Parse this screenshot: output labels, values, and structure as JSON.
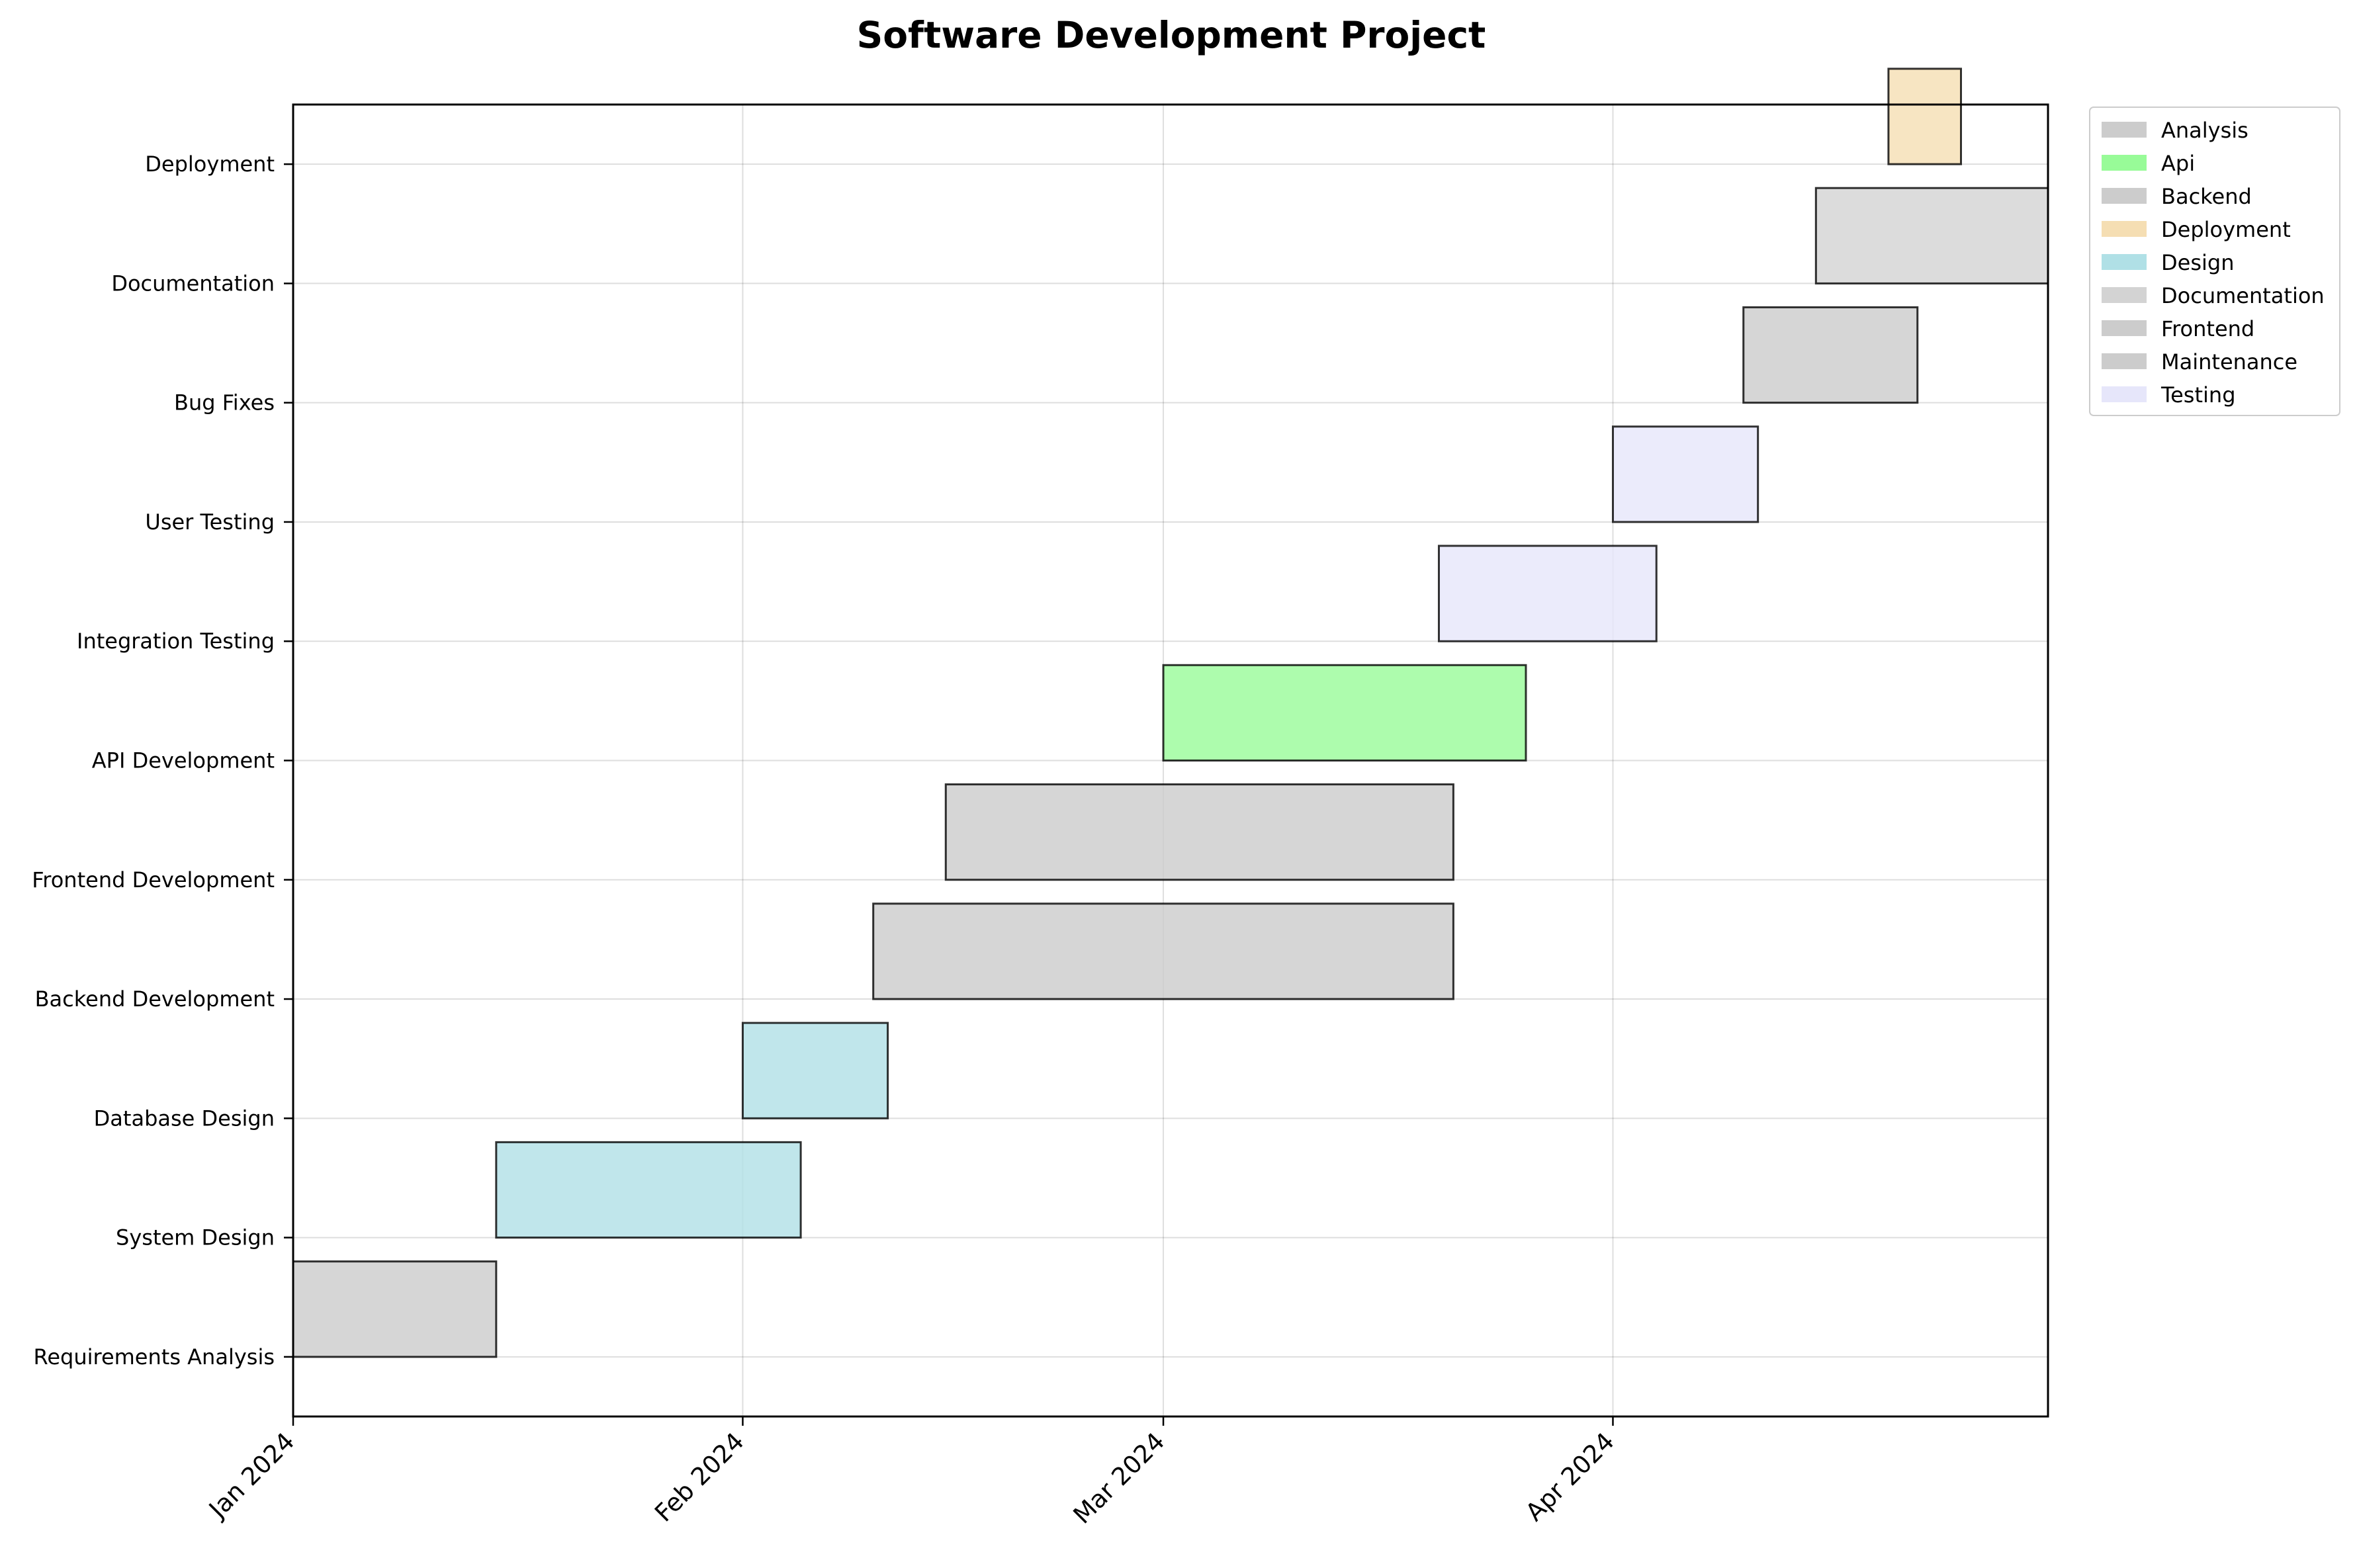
{
  "chart_data": {
    "type": "gantt",
    "title": "Software Development Project",
    "xlabel": "",
    "ylabel": "",
    "xlim": [
      "2024-01-01",
      "2024-05-01"
    ],
    "x_ticks": [
      {
        "date": "2024-01-01",
        "label": "Jan 2024"
      },
      {
        "date": "2024-02-01",
        "label": "Feb 2024"
      },
      {
        "date": "2024-03-01",
        "label": "Mar 2024"
      },
      {
        "date": "2024-04-01",
        "label": "Apr 2024"
      }
    ],
    "grid": true,
    "legend_position": "outside upper-right",
    "tasks": [
      {
        "name": "Requirements Analysis",
        "start": "2024-01-01",
        "end": "2024-01-15",
        "category": "Analysis"
      },
      {
        "name": "System Design",
        "start": "2024-01-15",
        "end": "2024-02-05",
        "category": "Design"
      },
      {
        "name": "Database Design",
        "start": "2024-02-01",
        "end": "2024-02-11",
        "category": "Design"
      },
      {
        "name": "Backend Development",
        "start": "2024-02-10",
        "end": "2024-03-21",
        "category": "Backend"
      },
      {
        "name": "Frontend Development",
        "start": "2024-02-15",
        "end": "2024-03-21",
        "category": "Frontend"
      },
      {
        "name": "API Development",
        "start": "2024-03-01",
        "end": "2024-03-26",
        "category": "Api"
      },
      {
        "name": "Integration Testing",
        "start": "2024-03-20",
        "end": "2024-04-04",
        "category": "Testing"
      },
      {
        "name": "User Testing",
        "start": "2024-04-01",
        "end": "2024-04-11",
        "category": "Testing"
      },
      {
        "name": "Bug Fixes",
        "start": "2024-04-10",
        "end": "2024-04-22",
        "category": "Maintenance"
      },
      {
        "name": "Documentation",
        "start": "2024-04-15",
        "end": "2024-05-01",
        "category": "Documentation"
      },
      {
        "name": "Deployment",
        "start": "2024-04-20",
        "end": "2024-04-25",
        "category": "Deployment"
      }
    ],
    "legend": [
      {
        "label": "Analysis",
        "color": "#cccccc"
      },
      {
        "label": "Api",
        "color": "#98fb98"
      },
      {
        "label": "Backend",
        "color": "#cccccc"
      },
      {
        "label": "Deployment",
        "color": "#f5deb3"
      },
      {
        "label": "Design",
        "color": "#b0e0e6"
      },
      {
        "label": "Documentation",
        "color": "#d3d3d3"
      },
      {
        "label": "Frontend",
        "color": "#cccccc"
      },
      {
        "label": "Maintenance",
        "color": "#cccccc"
      },
      {
        "label": "Testing",
        "color": "#e6e6fa"
      }
    ]
  }
}
